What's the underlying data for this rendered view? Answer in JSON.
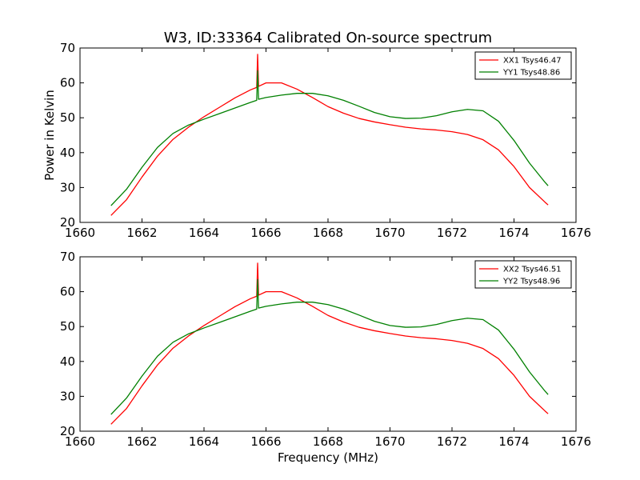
{
  "chart_data": [
    {
      "type": "line",
      "title": "W3, ID:33364 Calibrated On-source spectrum",
      "xlabel": "",
      "ylabel": "Power in Kelvin",
      "xlim": [
        1660,
        1676
      ],
      "ylim": [
        20,
        70
      ],
      "xticks": [
        "1660",
        "1662",
        "1664",
        "1666",
        "1668",
        "1670",
        "1672",
        "1674",
        "1676"
      ],
      "yticks": [
        "20",
        "30",
        "40",
        "50",
        "60",
        "70"
      ],
      "legend_position": "top-right",
      "series": [
        {
          "name": "XX1 Tsys46.47",
          "color": "#ff0000",
          "x": [
            1661.0,
            1661.5,
            1662.0,
            1662.5,
            1663.0,
            1663.5,
            1664.0,
            1664.5,
            1665.0,
            1665.5,
            1665.7,
            1665.73,
            1665.76,
            1666.0,
            1666.5,
            1667.0,
            1667.5,
            1668.0,
            1668.5,
            1669.0,
            1669.5,
            1670.0,
            1670.5,
            1671.0,
            1671.5,
            1672.0,
            1672.5,
            1673.0,
            1673.5,
            1674.0,
            1674.5,
            1675.0,
            1675.1
          ],
          "y": [
            22.0,
            26.5,
            33.0,
            39.0,
            43.8,
            47.3,
            50.3,
            53.0,
            55.7,
            58.0,
            58.7,
            68.2,
            59.0,
            60.0,
            60.0,
            58.2,
            55.8,
            53.2,
            51.3,
            49.8,
            48.8,
            48.0,
            47.3,
            46.8,
            46.5,
            46.0,
            45.2,
            43.7,
            40.8,
            36.0,
            30.0,
            25.8,
            25.0
          ]
        },
        {
          "name": "YY1 Tsys48.86",
          "color": "#008000",
          "x": [
            1661.0,
            1661.5,
            1662.0,
            1662.5,
            1663.0,
            1663.5,
            1664.0,
            1664.5,
            1665.0,
            1665.5,
            1665.7,
            1665.73,
            1665.76,
            1666.0,
            1666.5,
            1667.0,
            1667.5,
            1668.0,
            1668.5,
            1669.0,
            1669.5,
            1670.0,
            1670.5,
            1671.0,
            1671.5,
            1672.0,
            1672.5,
            1673.0,
            1673.5,
            1674.0,
            1674.5,
            1675.0,
            1675.1
          ],
          "y": [
            24.8,
            29.5,
            35.8,
            41.5,
            45.5,
            47.9,
            49.6,
            51.2,
            52.8,
            54.4,
            55.0,
            63.5,
            55.3,
            55.8,
            56.5,
            57.0,
            57.0,
            56.3,
            55.0,
            53.3,
            51.5,
            50.3,
            49.8,
            49.9,
            50.6,
            51.7,
            52.4,
            52.0,
            49.0,
            43.5,
            37.0,
            31.5,
            30.5
          ]
        }
      ]
    },
    {
      "type": "line",
      "title": "",
      "xlabel": "Frequency (MHz)",
      "ylabel": "",
      "xlim": [
        1660,
        1676
      ],
      "ylim": [
        20,
        70
      ],
      "xticks": [
        "1660",
        "1662",
        "1664",
        "1666",
        "1668",
        "1670",
        "1672",
        "1674",
        "1676"
      ],
      "yticks": [
        "20",
        "30",
        "40",
        "50",
        "60",
        "70"
      ],
      "legend_position": "top-right",
      "series": [
        {
          "name": "XX2 Tsys46.51",
          "color": "#ff0000",
          "x": [
            1661.0,
            1661.5,
            1662.0,
            1662.5,
            1663.0,
            1663.5,
            1664.0,
            1664.5,
            1665.0,
            1665.5,
            1665.7,
            1665.73,
            1665.76,
            1666.0,
            1666.5,
            1667.0,
            1667.5,
            1668.0,
            1668.5,
            1669.0,
            1669.5,
            1670.0,
            1670.5,
            1671.0,
            1671.5,
            1672.0,
            1672.5,
            1673.0,
            1673.5,
            1674.0,
            1674.5,
            1675.0,
            1675.1
          ],
          "y": [
            22.0,
            26.5,
            33.0,
            39.0,
            43.8,
            47.3,
            50.3,
            53.0,
            55.7,
            58.0,
            58.7,
            68.2,
            59.0,
            60.0,
            60.0,
            58.2,
            55.8,
            53.2,
            51.3,
            49.8,
            48.8,
            48.0,
            47.3,
            46.8,
            46.5,
            46.0,
            45.2,
            43.7,
            40.8,
            36.0,
            30.0,
            25.8,
            25.0
          ]
        },
        {
          "name": "YY2 Tsys48.96",
          "color": "#008000",
          "x": [
            1661.0,
            1661.5,
            1662.0,
            1662.5,
            1663.0,
            1663.5,
            1664.0,
            1664.5,
            1665.0,
            1665.5,
            1665.7,
            1665.73,
            1665.76,
            1666.0,
            1666.5,
            1667.0,
            1667.5,
            1668.0,
            1668.5,
            1669.0,
            1669.5,
            1670.0,
            1670.5,
            1671.0,
            1671.5,
            1672.0,
            1672.5,
            1673.0,
            1673.5,
            1674.0,
            1674.5,
            1675.0,
            1675.1
          ],
          "y": [
            24.8,
            29.5,
            35.8,
            41.5,
            45.5,
            47.9,
            49.6,
            51.2,
            52.8,
            54.4,
            55.0,
            63.5,
            55.3,
            55.8,
            56.5,
            57.0,
            57.0,
            56.3,
            55.0,
            53.3,
            51.5,
            50.3,
            49.8,
            49.9,
            50.6,
            51.7,
            52.4,
            52.0,
            49.0,
            43.5,
            37.0,
            31.5,
            30.5
          ]
        }
      ]
    }
  ]
}
